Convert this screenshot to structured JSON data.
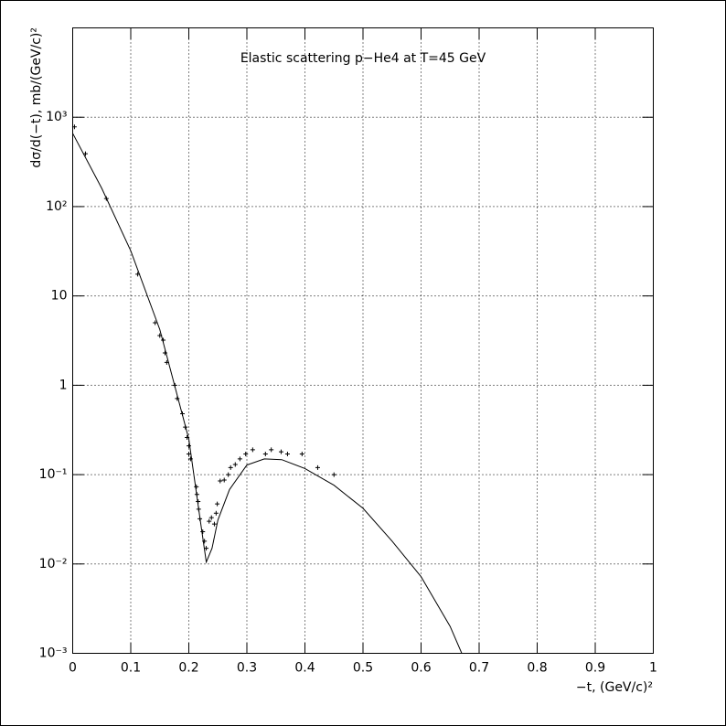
{
  "chart_data": {
    "type": "scatter",
    "title": "Elastic scattering p−He4 at T=45 GeV",
    "x_label": "−t, (GeV/c)²",
    "y_label": "dσ/d(−t), mb/(GeV/c)²",
    "xlim": [
      0,
      1
    ],
    "xticks": [
      0,
      0.1,
      0.2,
      0.3,
      0.4,
      0.5,
      0.6,
      0.7,
      0.8,
      0.9,
      1
    ],
    "ylim": [
      0.001,
      10000
    ],
    "log_y": true,
    "yticks": [
      {
        "value": 0.001,
        "label": "10⁻³"
      },
      {
        "value": 0.01,
        "label": "10⁻²"
      },
      {
        "value": 0.1,
        "label": "10⁻¹"
      },
      1,
      10,
      {
        "value": 100,
        "label": "10²"
      },
      {
        "value": 1000,
        "label": "10³"
      }
    ],
    "grid": true,
    "color": "#000000",
    "points": {
      "x": [
        0.003,
        0.022,
        0.058,
        0.112,
        0.142,
        0.15,
        0.156,
        0.159,
        0.162,
        0.176,
        0.18,
        0.189,
        0.194,
        0.197,
        0.2,
        0.2,
        0.203,
        0.213,
        0.214,
        0.216,
        0.217,
        0.219,
        0.224,
        0.227,
        0.23,
        0.235,
        0.239,
        0.244,
        0.247,
        0.249,
        0.254,
        0.261,
        0.268,
        0.272,
        0.28,
        0.288,
        0.298,
        0.31,
        0.332,
        0.342,
        0.359,
        0.37,
        0.395,
        0.422,
        0.45
      ],
      "y": [
        780,
        390,
        123,
        17.5,
        5.0,
        3.6,
        3.2,
        2.3,
        1.8,
        1.0,
        0.71,
        0.48,
        0.34,
        0.26,
        0.21,
        0.17,
        0.15,
        0.073,
        0.06,
        0.05,
        0.041,
        0.032,
        0.023,
        0.018,
        0.015,
        0.03,
        0.033,
        0.028,
        0.037,
        0.047,
        0.085,
        0.087,
        0.1,
        0.12,
        0.13,
        0.15,
        0.17,
        0.19,
        0.17,
        0.19,
        0.18,
        0.17,
        0.17,
        0.12,
        0.1
      ]
    },
    "curve": {
      "x": [
        0,
        0.05,
        0.1,
        0.15,
        0.2,
        0.22,
        0.23,
        0.24,
        0.25,
        0.27,
        0.3,
        0.33,
        0.36,
        0.4,
        0.45,
        0.5,
        0.55,
        0.6,
        0.65,
        0.67
      ],
      "y": [
        660,
        160,
        32,
        4.2,
        0.25,
        0.03,
        0.0105,
        0.015,
        0.031,
        0.068,
        0.128,
        0.15,
        0.147,
        0.117,
        0.076,
        0.042,
        0.018,
        0.0072,
        0.002,
        0.001
      ]
    }
  }
}
